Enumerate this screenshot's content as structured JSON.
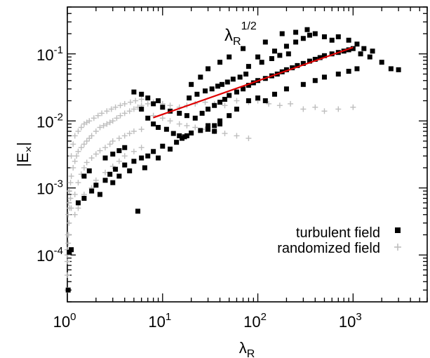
{
  "chart_data": {
    "type": "scatter",
    "x_scale": "log",
    "y_scale": "log",
    "xlim": [
      1,
      6000
    ],
    "ylim": [
      2e-05,
      0.5
    ],
    "grid": false,
    "legend_position": "right-middle",
    "xlabel": {
      "main": "λ",
      "sub": "R"
    },
    "ylabel": {
      "pre": "|E",
      "sub": "×",
      "post": "|"
    },
    "x_ticks": [
      {
        "value": 1,
        "base": "10",
        "exp": "0"
      },
      {
        "value": 10,
        "base": "10",
        "exp": "1"
      },
      {
        "value": 100,
        "base": "10",
        "exp": "2"
      },
      {
        "value": 1000,
        "base": "10",
        "exp": "3"
      }
    ],
    "y_ticks": [
      {
        "value": 0.0001,
        "base": "10",
        "exp": "-4"
      },
      {
        "value": 0.001,
        "base": "10",
        "exp": "-3"
      },
      {
        "value": 0.01,
        "base": "10",
        "exp": "-2"
      },
      {
        "value": 0.1,
        "base": "10",
        "exp": "-1"
      }
    ],
    "series": [
      {
        "name": "turbulent field",
        "marker": "filled-square",
        "color": "#000000",
        "points": [
          [
            1.05,
            0.00011
          ],
          [
            1.1,
            0.00012
          ],
          [
            1.02,
            3e-05
          ],
          [
            1.3,
            0.0006
          ],
          [
            1.5,
            0.0007
          ],
          [
            1.8,
            0.0009
          ],
          [
            2.0,
            0.0011
          ],
          [
            2.2,
            0.0008
          ],
          [
            2.5,
            0.0013
          ],
          [
            2.8,
            0.0016
          ],
          [
            3.0,
            0.0012
          ],
          [
            3.2,
            0.0019
          ],
          [
            3.5,
            0.0015
          ],
          [
            4.0,
            0.0022
          ],
          [
            4.5,
            0.0018
          ],
          [
            5.0,
            0.0025
          ],
          [
            5.5,
            0.00045
          ],
          [
            6.0,
            0.0028
          ],
          [
            6.5,
            0.002
          ],
          [
            7.0,
            0.003
          ],
          [
            8.0,
            0.0035
          ],
          [
            9.0,
            0.0028
          ],
          [
            10,
            0.0042
          ],
          [
            12,
            0.0038
          ],
          [
            14,
            0.0048
          ],
          [
            16,
            0.0055
          ],
          [
            18,
            0.006
          ],
          [
            20,
            0.0066
          ],
          [
            25,
            0.0072
          ],
          [
            30,
            0.0085
          ],
          [
            35,
            0.007
          ],
          [
            40,
            0.009
          ],
          [
            5.0,
            0.027
          ],
          [
            6.0,
            0.025
          ],
          [
            7.0,
            0.022
          ],
          [
            8.0,
            0.018
          ],
          [
            9.0,
            0.02
          ],
          [
            10,
            0.016
          ],
          [
            12,
            0.014
          ],
          [
            15,
            0.013
          ],
          [
            18,
            0.012
          ],
          [
            22,
            0.011
          ],
          [
            26,
            0.013
          ],
          [
            30,
            0.015
          ],
          [
            35,
            0.017
          ],
          [
            40,
            0.019
          ],
          [
            45,
            0.021
          ],
          [
            50,
            0.024
          ],
          [
            60,
            0.027
          ],
          [
            70,
            0.03
          ],
          [
            80,
            0.034
          ],
          [
            90,
            0.037
          ],
          [
            100,
            0.04
          ],
          [
            120,
            0.043
          ],
          [
            140,
            0.047
          ],
          [
            160,
            0.05
          ],
          [
            180,
            0.054
          ],
          [
            200,
            0.058
          ],
          [
            230,
            0.062
          ],
          [
            260,
            0.067
          ],
          [
            300,
            0.072
          ],
          [
            350,
            0.078
          ],
          [
            400,
            0.083
          ],
          [
            450,
            0.088
          ],
          [
            500,
            0.094
          ],
          [
            600,
            0.1
          ],
          [
            700,
            0.105
          ],
          [
            800,
            0.11
          ],
          [
            900,
            0.115
          ],
          [
            1000,
            0.12
          ],
          [
            1200,
            0.1
          ],
          [
            1500,
            0.09
          ],
          [
            2000,
            0.075
          ],
          [
            2500,
            0.06
          ],
          [
            3000,
            0.058
          ],
          [
            100,
            0.09
          ],
          [
            150,
            0.11
          ],
          [
            200,
            0.13
          ],
          [
            250,
            0.15
          ],
          [
            300,
            0.17
          ],
          [
            350,
            0.19
          ],
          [
            400,
            0.2
          ],
          [
            500,
            0.18
          ],
          [
            600,
            0.16
          ],
          [
            70,
            0.12
          ],
          [
            50,
            0.09
          ],
          [
            40,
            0.075
          ],
          [
            30,
            0.06
          ],
          [
            25,
            0.045
          ],
          [
            20,
            0.035
          ],
          [
            150,
            0.025
          ],
          [
            200,
            0.03
          ],
          [
            300,
            0.035
          ],
          [
            400,
            0.04
          ],
          [
            500,
            0.045
          ],
          [
            700,
            0.05
          ],
          [
            900,
            0.055
          ],
          [
            1100,
            0.06
          ],
          [
            60,
            0.015
          ],
          [
            80,
            0.02
          ],
          [
            100,
            0.022
          ],
          [
            120,
            0.02
          ],
          [
            50,
            0.012
          ],
          [
            40,
            0.01
          ],
          [
            35,
            0.0085
          ],
          [
            30,
            0.0075
          ],
          [
            1100,
            0.14
          ],
          [
            1300,
            0.12
          ],
          [
            1600,
            0.11
          ],
          [
            700,
            0.18
          ],
          [
            900,
            0.16
          ],
          [
            120,
            0.15
          ],
          [
            180,
            0.2
          ],
          [
            250,
            0.21
          ],
          [
            330,
            0.23
          ],
          [
            80,
            0.065
          ],
          [
            110,
            0.075
          ],
          [
            140,
            0.085
          ],
          [
            170,
            0.095
          ],
          [
            210,
            0.1
          ],
          [
            6.0,
            0.015
          ],
          [
            7.0,
            0.011
          ],
          [
            8.0,
            0.009
          ],
          [
            9.0,
            0.008
          ],
          [
            11,
            0.0075
          ],
          [
            13,
            0.0065
          ],
          [
            15,
            0.006
          ],
          [
            17,
            0.0058
          ],
          [
            2.5,
            0.0028
          ],
          [
            3.0,
            0.0032
          ],
          [
            3.5,
            0.0036
          ],
          [
            4.0,
            0.004
          ],
          [
            1.5,
            0.0015
          ],
          [
            1.7,
            0.0018
          ],
          [
            19,
            0.022
          ],
          [
            23,
            0.025
          ],
          [
            28,
            0.028
          ],
          [
            33,
            0.03
          ],
          [
            38,
            0.033
          ],
          [
            42,
            0.035
          ],
          [
            48,
            0.038
          ],
          [
            55,
            0.042
          ],
          [
            65,
            0.045
          ],
          [
            75,
            0.05
          ]
        ]
      },
      {
        "name": "randomized field",
        "marker": "plus",
        "color": "#bebebe",
        "points": [
          [
            1.0,
            3e-05
          ],
          [
            1.0,
            5e-05
          ],
          [
            1.0,
            0.0001
          ],
          [
            1.01,
            0.0002
          ],
          [
            1.02,
            0.0004
          ],
          [
            1.03,
            0.0006
          ],
          [
            1.05,
            0.0009
          ],
          [
            1.08,
            0.0012
          ],
          [
            1.1,
            0.0015
          ],
          [
            1.15,
            0.002
          ],
          [
            1.2,
            0.0025
          ],
          [
            1.25,
            0.003
          ],
          [
            1.3,
            0.0035
          ],
          [
            1.4,
            0.004
          ],
          [
            1.5,
            0.0045
          ],
          [
            1.6,
            0.005
          ],
          [
            1.7,
            0.0055
          ],
          [
            1.8,
            0.006
          ],
          [
            2.0,
            0.007
          ],
          [
            2.2,
            0.008
          ],
          [
            2.4,
            0.0085
          ],
          [
            2.6,
            0.009
          ],
          [
            2.8,
            0.0095
          ],
          [
            3.0,
            0.01
          ],
          [
            3.3,
            0.011
          ],
          [
            3.6,
            0.012
          ],
          [
            4.0,
            0.013
          ],
          [
            4.5,
            0.014
          ],
          [
            5.0,
            0.015
          ],
          [
            5.5,
            0.016
          ],
          [
            6.0,
            0.017
          ],
          [
            7.0,
            0.018
          ],
          [
            1.2,
            0.0008
          ],
          [
            1.3,
            0.0012
          ],
          [
            1.4,
            0.0016
          ],
          [
            1.5,
            0.002
          ],
          [
            1.6,
            0.0024
          ],
          [
            1.8,
            0.0028
          ],
          [
            2.0,
            0.0032
          ],
          [
            2.2,
            0.0036
          ],
          [
            2.5,
            0.004
          ],
          [
            2.8,
            0.0045
          ],
          [
            3.0,
            0.005
          ],
          [
            3.5,
            0.0055
          ],
          [
            4.0,
            0.006
          ],
          [
            4.5,
            0.0065
          ],
          [
            5.0,
            0.007
          ],
          [
            6.0,
            0.0075
          ],
          [
            1.1,
            0.0005
          ],
          [
            1.2,
            0.0004
          ],
          [
            1.3,
            0.0005
          ],
          [
            1.5,
            0.0008
          ],
          [
            1.8,
            0.001
          ],
          [
            2.0,
            0.0013
          ],
          [
            2.5,
            0.0017
          ],
          [
            3.0,
            0.0021
          ],
          [
            3.5,
            0.0025
          ],
          [
            4.0,
            0.003
          ],
          [
            5.0,
            0.0035
          ],
          [
            6.0,
            0.004
          ],
          [
            1.1,
            0.003
          ],
          [
            1.15,
            0.0045
          ],
          [
            1.2,
            0.006
          ],
          [
            1.3,
            0.007
          ],
          [
            1.4,
            0.008
          ],
          [
            1.5,
            0.009
          ],
          [
            1.6,
            0.0095
          ],
          [
            1.7,
            0.01
          ],
          [
            1.9,
            0.011
          ],
          [
            2.1,
            0.012
          ],
          [
            2.3,
            0.013
          ],
          [
            2.6,
            0.014
          ],
          [
            2.9,
            0.015
          ],
          [
            3.2,
            0.016
          ],
          [
            3.6,
            0.017
          ],
          [
            4.0,
            0.018
          ],
          [
            4.6,
            0.019
          ],
          [
            5.2,
            0.02
          ],
          [
            6.0,
            0.021
          ],
          [
            8.0,
            0.019
          ],
          [
            10,
            0.018
          ],
          [
            12,
            0.017
          ],
          [
            15,
            0.016
          ],
          [
            18,
            0.017
          ],
          [
            22,
            0.018
          ],
          [
            28,
            0.019
          ],
          [
            35,
            0.018
          ],
          [
            45,
            0.017
          ],
          [
            60,
            0.02
          ],
          [
            80,
            0.019
          ],
          [
            100,
            0.02
          ],
          [
            130,
            0.018
          ],
          [
            170,
            0.017
          ],
          [
            220,
            0.018
          ],
          [
            300,
            0.015
          ],
          [
            400,
            0.016
          ],
          [
            500,
            0.014
          ],
          [
            700,
            0.015
          ],
          [
            1000,
            0.016
          ],
          [
            8.0,
            0.012
          ],
          [
            10,
            0.011
          ],
          [
            12,
            0.01
          ],
          [
            15,
            0.009
          ],
          [
            18,
            0.0085
          ],
          [
            22,
            0.008
          ],
          [
            28,
            0.0075
          ],
          [
            35,
            0.007
          ],
          [
            45,
            0.0065
          ],
          [
            60,
            0.006
          ],
          [
            80,
            0.0055
          ],
          [
            1.02,
            0.00015
          ],
          [
            1.04,
            0.0003
          ],
          [
            1.06,
            0.0005
          ],
          [
            1.08,
            0.0007
          ],
          [
            1.0,
            8e-05
          ],
          [
            1.0,
            0.00012
          ],
          [
            1.01,
            0.0001
          ],
          [
            1.03,
            0.0002
          ]
        ]
      }
    ],
    "fit_line": {
      "color": "#e00000",
      "x": [
        8,
        1000
      ],
      "y": [
        0.0112,
        0.125
      ],
      "label": {
        "main": "λ",
        "sub": "R",
        "sup": "1/2"
      }
    }
  }
}
